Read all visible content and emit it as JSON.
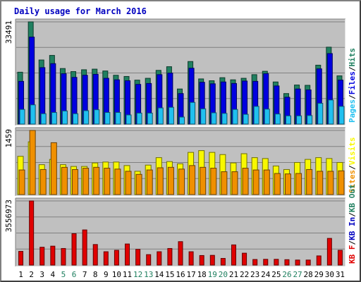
{
  "chart_data": {
    "type": "bar",
    "title": "Daily usage for March 2016",
    "categories": [
      "1",
      "2",
      "3",
      "4",
      "5",
      "6",
      "7",
      "8",
      "9",
      "10",
      "11",
      "12",
      "13",
      "14",
      "15",
      "16",
      "17",
      "18",
      "19",
      "20",
      "21",
      "22",
      "23",
      "24",
      "25",
      "26",
      "27",
      "28",
      "29",
      "30",
      "31"
    ],
    "weekend_days": [
      "5",
      "6",
      "12",
      "13",
      "19",
      "20",
      "26",
      "27"
    ],
    "colors": {
      "title": "#0000c0",
      "background": "#c0c0c0",
      "hits": "#208060",
      "files": "#0000e0",
      "pages": "#20c0f0",
      "visits": "#f8f800",
      "sites": "#f09000",
      "kb_in": "#0000c0",
      "kb_out": "#208060",
      "kb_f": "#e00000",
      "weekday_label": "#000000",
      "weekend_label": "#208060"
    },
    "panels": [
      {
        "id": "hits-files-pages",
        "ymax_label": "33491",
        "ymax": 33491,
        "legend": [
          "Pages",
          "Files",
          "Hits"
        ],
        "legend_separator": "/",
        "series": [
          {
            "name": "Hits",
            "values": [
              17000,
              33491,
              21000,
              22500,
              18200,
              17200,
              17800,
              18000,
              17400,
              16000,
              15600,
              14400,
              15000,
              17600,
              18800,
              11500,
              20500,
              14800,
              14200,
              15200,
              14500,
              15000,
              16200,
              17300,
              13800,
              10000,
              12800,
              12700,
              19300,
              25200,
              15800
            ]
          },
          {
            "name": "Files",
            "values": [
              14000,
              28500,
              18500,
              19800,
              16500,
              15300,
              16000,
              16300,
              15000,
              14500,
              14200,
              13000,
              13300,
              16200,
              16700,
              10000,
              18300,
              13700,
              13200,
              13800,
              13300,
              14100,
              14000,
              16500,
              12500,
              8800,
              11500,
              11200,
              18100,
              23100,
              14400
            ]
          },
          {
            "name": "Pages",
            "values": [
              4800,
              6300,
              3400,
              3800,
              4300,
              3400,
              4400,
              4700,
              3800,
              3800,
              3000,
              3600,
              3600,
              5300,
              5500,
              2300,
              7100,
              5000,
              3700,
              3500,
              4800,
              3200,
              5800,
              4900,
              3300,
              2700,
              2700,
              2800,
              6800,
              7900,
              5800
            ]
          }
        ]
      },
      {
        "id": "visits-sites",
        "ymax_label": "1459",
        "ymax": 1459,
        "legend": [
          "Sites",
          "Visits"
        ],
        "legend_separator": "/",
        "series": [
          {
            "name": "Visits",
            "values": [
              870,
              1200,
              680,
              800,
              680,
              640,
              640,
              720,
              740,
              740,
              660,
              530,
              670,
              840,
              750,
              700,
              960,
              1000,
              960,
              910,
              720,
              930,
              840,
              820,
              650,
              570,
              730,
              800,
              840,
              820,
              730
            ]
          },
          {
            "name": "Sites",
            "values": [
              560,
              1459,
              570,
              1180,
              620,
              570,
              600,
              620,
              600,
              580,
              530,
              460,
              560,
              610,
              620,
              580,
              660,
              620,
              600,
              520,
              520,
              600,
              560,
              560,
              480,
              470,
              480,
              570,
              530,
              530,
              540
            ]
          }
        ]
      },
      {
        "id": "kbf-kbin-kbout",
        "ymax_label": "3556973",
        "ymax": 3556973,
        "legend": [
          "KB F",
          "KB In",
          "KB Out"
        ],
        "legend_separator": "/",
        "series": [
          {
            "name": "KB F",
            "values": [
              760000,
              3556973,
              990000,
              1050000,
              920000,
              1740000,
              1950000,
              1140000,
              740000,
              820000,
              1170000,
              870000,
              580000,
              740000,
              920000,
              1300000,
              740000,
              530000,
              540000,
              370000,
              1120000,
              660000,
              310000,
              320000,
              320000,
              300000,
              280000,
              280000,
              510000,
              1480000,
              820000
            ]
          }
        ]
      }
    ]
  }
}
